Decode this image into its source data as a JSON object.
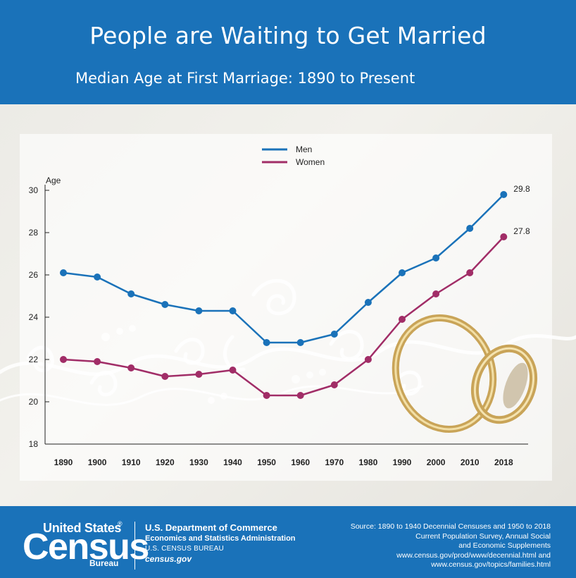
{
  "header": {
    "title": "People are Waiting to Get Married",
    "subtitle": "Median Age at First Marriage: 1890 to Present"
  },
  "colors": {
    "header_blue": "#1a72b9",
    "men_line": "#1a72b9",
    "women_line": "#a12d67",
    "axis": "#222222"
  },
  "chart_data": {
    "type": "line",
    "title": "Median Age at First Marriage: 1890 to Present",
    "ylabel": "Age",
    "xlabel": "",
    "ylim": [
      18,
      30
    ],
    "yticks": [
      18,
      20,
      22,
      24,
      26,
      28,
      30
    ],
    "categories": [
      "1890",
      "1900",
      "1910",
      "1920",
      "1930",
      "1940",
      "1950",
      "1960",
      "1970",
      "1980",
      "1990",
      "2000",
      "2010",
      "2018"
    ],
    "series": [
      {
        "name": "Men",
        "values": [
          26.1,
          25.9,
          25.1,
          24.6,
          24.3,
          24.3,
          22.8,
          22.8,
          23.2,
          24.7,
          26.1,
          26.8,
          28.2,
          29.8
        ],
        "end_label": "29.8"
      },
      {
        "name": "Women",
        "values": [
          22.0,
          21.9,
          21.6,
          21.2,
          21.3,
          21.5,
          20.3,
          20.3,
          20.8,
          22.0,
          23.9,
          25.1,
          26.1,
          27.8
        ],
        "end_label": "27.8"
      }
    ],
    "legend_position": "top-center",
    "grid": false
  },
  "footer": {
    "logo_united": "United States",
    "logo_reg": "®",
    "logo_census": "Census",
    "logo_bureau": "Bureau",
    "dept_line1": "U.S. Department of Commerce",
    "dept_line2": "Economics and Statistics Administration",
    "dept_line3": "U.S. CENSUS BUREAU",
    "dept_line4": "census.gov",
    "source_lines": [
      "Source: 1890 to 1940 Decennial Censuses and 1950 to 2018",
      "Current Population Survey, Annual Social",
      "and Economic Supplements",
      "www.census.gov/prod/www/decennial.html and",
      "www.census.gov/topics/families.html"
    ]
  }
}
